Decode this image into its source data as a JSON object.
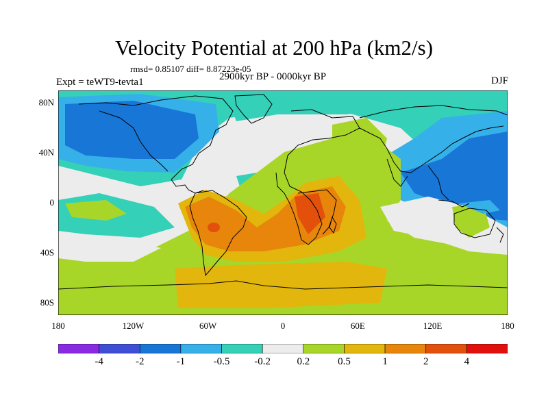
{
  "title": "Velocity Potential at 200 hPa (km2/s)",
  "stats": "rmsd= 0.85107 diff= 8.87223e-05",
  "experiment": "Expt = teWT9-tevta1",
  "period": "2900kyr BP - 0000kyr BP",
  "season": "DJF",
  "map": {
    "lon_range": [
      -180,
      180
    ],
    "lat_range": [
      -90,
      90
    ],
    "x_ticks": [
      {
        "lon": -180,
        "label": "180"
      },
      {
        "lon": -120,
        "label": "120W"
      },
      {
        "lon": -60,
        "label": "60W"
      },
      {
        "lon": 0,
        "label": "0"
      },
      {
        "lon": 60,
        "label": "60E"
      },
      {
        "lon": 120,
        "label": "120E"
      },
      {
        "lon": 180,
        "label": "180"
      }
    ],
    "y_ticks": [
      {
        "lat": 80,
        "label": "80N"
      },
      {
        "lat": 40,
        "label": "40N"
      },
      {
        "lat": 0,
        "label": "0"
      },
      {
        "lat": -40,
        "label": "40S"
      },
      {
        "lat": -80,
        "label": "80S"
      }
    ]
  },
  "colorbar": {
    "colors": [
      "#8a2be2",
      "#3e4fd6",
      "#1877d6",
      "#36b0e8",
      "#34d0b8",
      "#ececec",
      "#a8d628",
      "#e2b60c",
      "#e8860c",
      "#e2500c",
      "#e2100c"
    ],
    "labels": [
      "-4",
      "-2",
      "-1",
      "-0.5",
      "-0.2",
      "0.2",
      "0.5",
      "1",
      "2",
      "4"
    ]
  }
}
